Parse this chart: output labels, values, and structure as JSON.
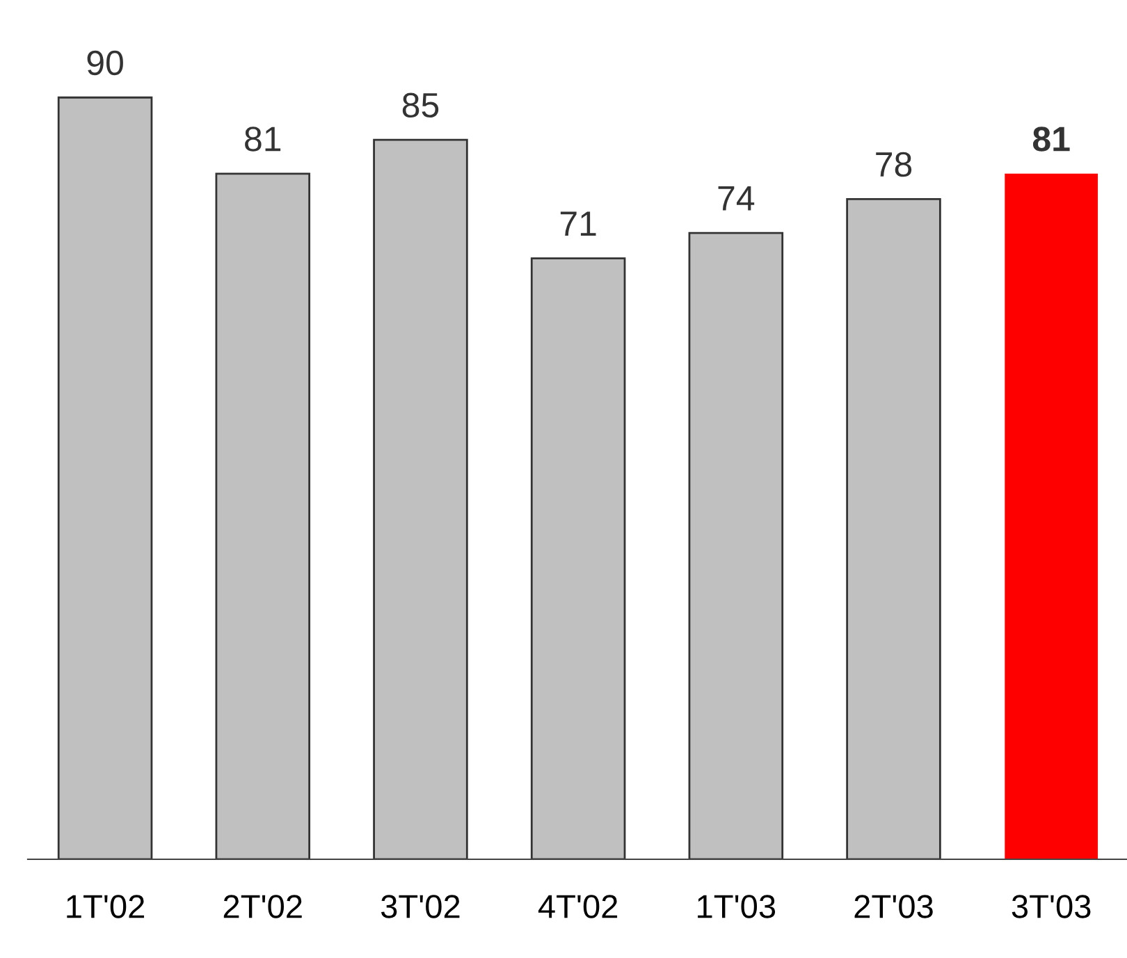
{
  "chart_data": {
    "type": "bar",
    "categories": [
      "1T'02",
      "2T'02",
      "3T'02",
      "4T'02",
      "1T'03",
      "2T'03",
      "3T'03"
    ],
    "values": [
      90,
      81,
      85,
      71,
      74,
      78,
      81
    ],
    "colors": [
      "#c0c0c0",
      "#c0c0c0",
      "#c0c0c0",
      "#c0c0c0",
      "#c0c0c0",
      "#c0c0c0",
      "#ff0000"
    ],
    "data_labels": true,
    "grid": false,
    "legend": false
  }
}
